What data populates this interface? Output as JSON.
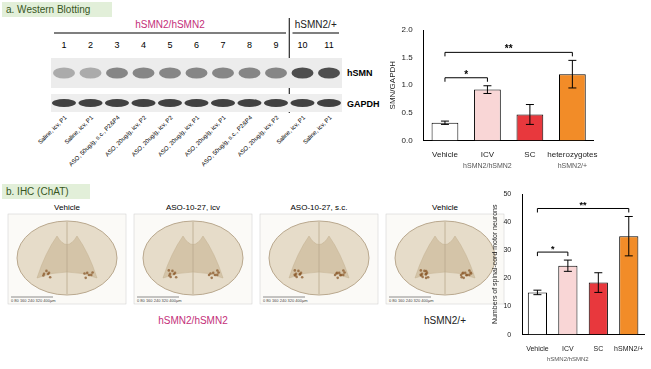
{
  "panels": [
    {
      "label": "a. Western Blotting",
      "genotypes": [
        {
          "text": "hSMN2/hSMN2",
          "color": "#c4307a"
        },
        {
          "text": "hSMN2/+",
          "color": "#222222"
        }
      ],
      "lanes": [
        {
          "number": 1,
          "label": "Saline, icv, P1"
        },
        {
          "number": 2,
          "label": "Saline, icv, P1"
        },
        {
          "number": 3,
          "label": "ASO, 50ug/g, s.c., P2&P4"
        },
        {
          "number": 4,
          "label": "ASO, 20ug/g, icv, P2"
        },
        {
          "number": 5,
          "label": "ASO, 20ug/g, icv, P2"
        },
        {
          "number": 6,
          "label": "ASO, 20ug/g, icv, P1"
        },
        {
          "number": 7,
          "label": "ASO, 20ug/g, icv, P1"
        },
        {
          "number": 8,
          "label": "ASO, 50ug/g, s.c., P2&P4"
        },
        {
          "number": 9,
          "label": "ASO, 20ug/g, icv, P2"
        },
        {
          "number": 10,
          "label": "Saline, icv, P1"
        },
        {
          "number": 11,
          "label": "Saline, icv, P1"
        }
      ],
      "bands": [
        "hSMN",
        "GAPDH"
      ]
    },
    {
      "label": "b. IHC (ChAT)",
      "images": [
        {
          "title": "Vehicle",
          "scale_bar": "0  80  160  240  320  400µm"
        },
        {
          "title": "ASO-10-27, icv",
          "scale_bar": "0  80  160  240  320  400µm"
        },
        {
          "title": "ASO-10-27, s.c.",
          "scale_bar": "0  80  160  240  320  400µm"
        },
        {
          "title": "Vehicle",
          "scale_bar": "0  80  160  240  320  400µm"
        }
      ],
      "genotypes": [
        {
          "text": "hSMN2/hSMN2",
          "color": "#c4307a"
        },
        {
          "text": "hSMN2/+",
          "color": "#222222"
        }
      ]
    }
  ],
  "chart_data": [
    {
      "type": "bar",
      "y_label": "SMN/GAPDH",
      "categories": [
        "Vehicle",
        "ICV",
        "SC",
        "heterozygotes"
      ],
      "values": [
        0.32,
        0.92,
        0.47,
        1.2
      ],
      "errors": [
        0.03,
        0.07,
        0.18,
        0.25
      ],
      "colors": [
        "#ffffff",
        "#f9d6d6",
        "#e8383d",
        "#f28c28"
      ],
      "ylim": [
        0,
        2
      ],
      "yticks": [
        {
          "value": 0,
          "label": "0.0"
        },
        {
          "value": 0.5,
          "label": "0.5"
        },
        {
          "value": 1,
          "label": "1.0"
        },
        {
          "value": 1.5,
          "label": "1.5"
        },
        {
          "value": 2,
          "label": "2.0"
        }
      ],
      "grid": false,
      "groups": [
        {
          "label": "hSMN2/hSMN2",
          "categories": [
            "Vehicle",
            "ICV",
            "SC"
          ],
          "color": "#555555"
        },
        {
          "label": "hSMN2/+",
          "categories": [
            "heterozygotes"
          ],
          "color": "#555555"
        }
      ],
      "annotations": [
        {
          "from": "Vehicle",
          "to": "ICV",
          "text": "*"
        },
        {
          "from": "Vehicle",
          "to": "heterozygotes",
          "text": "**"
        }
      ]
    },
    {
      "type": "bar",
      "y_label": "Numbers of spinal-cord motor neurons",
      "categories": [
        "Vehicle",
        "ICV",
        "SC",
        "hSMN2/+"
      ],
      "values": [
        15,
        24.5,
        18.5,
        35
      ],
      "errors": [
        0.8,
        2,
        3.5,
        7
      ],
      "colors": [
        "#ffffff",
        "#f9d6d6",
        "#e8383d",
        "#f28c28"
      ],
      "ylim": [
        0,
        50
      ],
      "yticks": [
        0,
        10,
        20,
        30,
        40,
        50
      ],
      "grid": false,
      "groups": [
        {
          "label": "hSMN2/hSMN2",
          "categories": [
            "Vehicle",
            "ICV",
            "SC"
          ],
          "color": "#555555"
        }
      ],
      "annotations": [
        {
          "from": "Vehicle",
          "to": "ICV",
          "text": "*"
        },
        {
          "from": "Vehicle",
          "to": "hSMN2/+",
          "text": "**"
        }
      ]
    }
  ]
}
